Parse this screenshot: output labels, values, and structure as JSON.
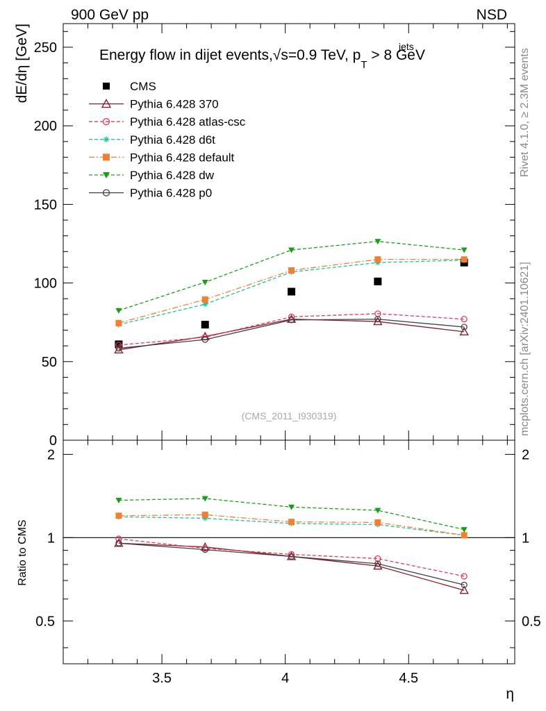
{
  "header": {
    "left": "900 GeV pp",
    "right": "NSD"
  },
  "side": {
    "rivet": "Rivet 4.1.0, ≥ 2.3M events",
    "mcplots": "mcplots.cern.ch [arXiv:2401.10621]"
  },
  "chart_data": [
    {
      "type": "line",
      "panel": "main",
      "title": "Energy flow in dijet events,√s=0.9 TeV, p",
      "title_sup": "jets",
      "title_sub": "T",
      "title_tail": " > 8 GeV",
      "ylabel": "dE/dη [GeV]",
      "xlim": [
        3.1,
        4.93
      ],
      "ylim": [
        0,
        265
      ],
      "yticks": [
        0,
        50,
        100,
        150,
        200,
        250
      ],
      "watermark": "(CMS_2011_I930319)",
      "legend_position": "top-left",
      "x": [
        3.325,
        3.675,
        4.025,
        4.375,
        4.725
      ],
      "series": [
        {
          "name": "CMS",
          "color": "#000000",
          "marker": "square-filled",
          "line": "none",
          "values": [
            61,
            73.5,
            94.5,
            101,
            113
          ]
        },
        {
          "name": "Pythia 6.428 370",
          "color": "#8b1a2b",
          "marker": "triangle-open",
          "line": "solid",
          "values": [
            57.5,
            66,
            77,
            75.5,
            69
          ]
        },
        {
          "name": "Pythia 6.428 atlas-csc",
          "color": "#e8375a",
          "marker": "circle-open",
          "line": "dashed",
          "values": [
            60.5,
            65.5,
            78.5,
            80.5,
            77
          ]
        },
        {
          "name": "Pythia 6.428 d6t",
          "color": "#1fbf9f",
          "marker": "asterisk",
          "line": "dashed",
          "values": [
            73.5,
            86.5,
            107,
            113,
            114.5
          ]
        },
        {
          "name": "Pythia 6.428 default",
          "color": "#f28030",
          "marker": "square-filled",
          "line": "dashdot",
          "values": [
            74.5,
            89.5,
            108,
            115,
            115
          ]
        },
        {
          "name": "Pythia 6.428 dw",
          "color": "#1a9e1a",
          "marker": "triangle-down-filled",
          "line": "dashed",
          "values": [
            82.5,
            100.5,
            121,
            126.5,
            121
          ]
        },
        {
          "name": "Pythia 6.428 p0",
          "color": "#404040",
          "marker": "circle-open",
          "line": "solid",
          "values": [
            58.5,
            64,
            76.5,
            77,
            72
          ]
        }
      ]
    },
    {
      "type": "line",
      "panel": "ratio",
      "ylabel": "Ratio to CMS",
      "xlabel": "η",
      "xlim": [
        3.1,
        4.93
      ],
      "ylim": [
        0.35,
        2.25
      ],
      "yticks": [
        0.5,
        1,
        2
      ],
      "xticks": [
        3.5,
        4,
        4.5
      ],
      "x": [
        3.325,
        3.675,
        4.025,
        4.375,
        4.725
      ],
      "series": [
        {
          "name": "Pythia 6.428 370",
          "color": "#8b1a2b",
          "marker": "triangle-open",
          "line": "solid",
          "values": [
            0.955,
            0.925,
            0.855,
            0.79,
            0.645
          ]
        },
        {
          "name": "Pythia 6.428 atlas-csc",
          "color": "#e8375a",
          "marker": "circle-open",
          "line": "dashed",
          "values": [
            0.99,
            0.915,
            0.87,
            0.84,
            0.725
          ]
        },
        {
          "name": "Pythia 6.428 d6t",
          "color": "#1fbf9f",
          "marker": "asterisk",
          "line": "dashed",
          "values": [
            1.19,
            1.175,
            1.125,
            1.115,
            1.02
          ]
        },
        {
          "name": "Pythia 6.428 default",
          "color": "#f28030",
          "marker": "square-filled",
          "line": "dashdot",
          "values": [
            1.2,
            1.21,
            1.14,
            1.135,
            1.02
          ]
        },
        {
          "name": "Pythia 6.428 dw",
          "color": "#1a9e1a",
          "marker": "triangle-down-filled",
          "line": "dashed",
          "values": [
            1.365,
            1.385,
            1.29,
            1.255,
            1.07
          ]
        },
        {
          "name": "Pythia 6.428 p0",
          "color": "#404040",
          "marker": "circle-open",
          "line": "solid",
          "values": [
            0.955,
            0.905,
            0.855,
            0.805,
            0.675
          ]
        }
      ]
    }
  ]
}
